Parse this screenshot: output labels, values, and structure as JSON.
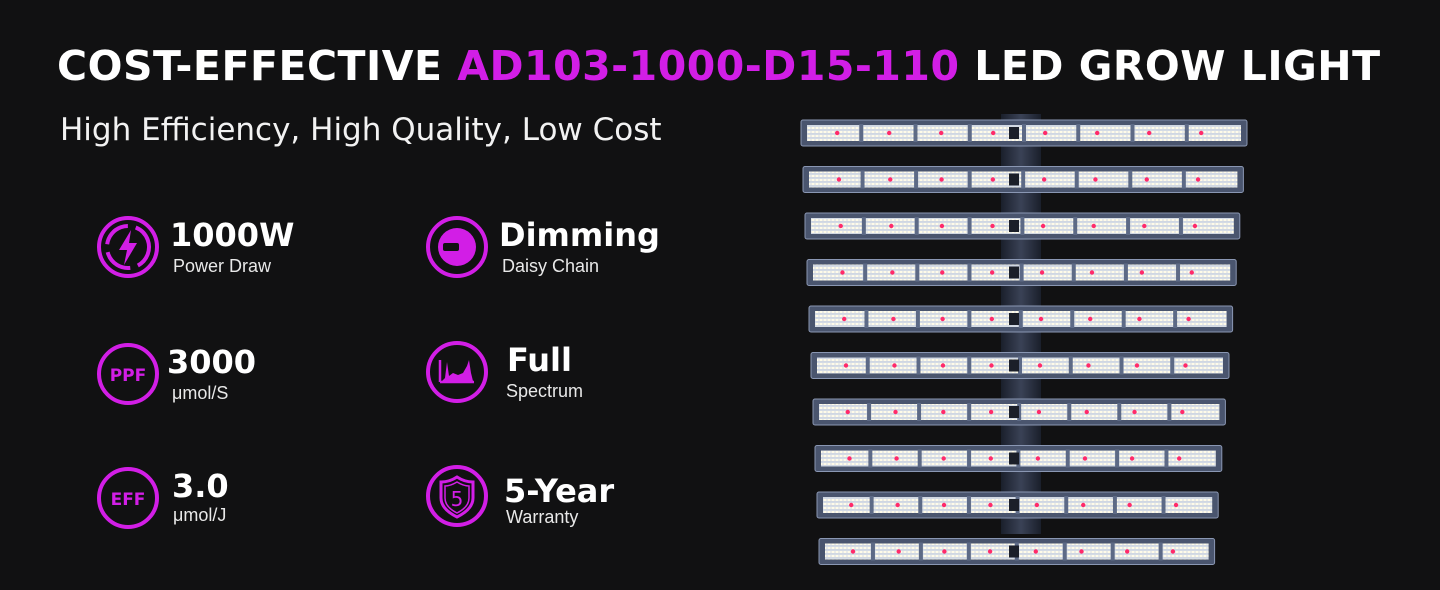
{
  "header": {
    "title_part1": "COST-EFFECTIVE ",
    "title_model": "AD103-1000-D15-110",
    "title_part2": " LED GROW LIGHT",
    "subtitle": "High Efficiency, High Quality, Low Cost"
  },
  "colors": {
    "accent": "#d21ee6",
    "background": "#111112",
    "text": "#ffffff"
  },
  "features": [
    {
      "icon": "lightning-bolt-icon",
      "value": "1000W",
      "label": "Power Draw"
    },
    {
      "icon": "dimmer-knob-icon",
      "value": "Dimming",
      "label": "Daisy Chain"
    },
    {
      "icon": "ppf-icon",
      "icon_text": "PPF",
      "value": "3000",
      "label": "μmol/S"
    },
    {
      "icon": "spectrum-graph-icon",
      "value": "Full",
      "label": "Spectrum"
    },
    {
      "icon": "eff-icon",
      "icon_text": "EFF",
      "value": "3.0",
      "label": "μmol/J"
    },
    {
      "icon": "warranty-shield-icon",
      "icon_text": "5",
      "value": "5-Year",
      "label": "Warranty"
    }
  ],
  "product": {
    "name": "led-grow-light-fixture",
    "bar_count": 10
  }
}
